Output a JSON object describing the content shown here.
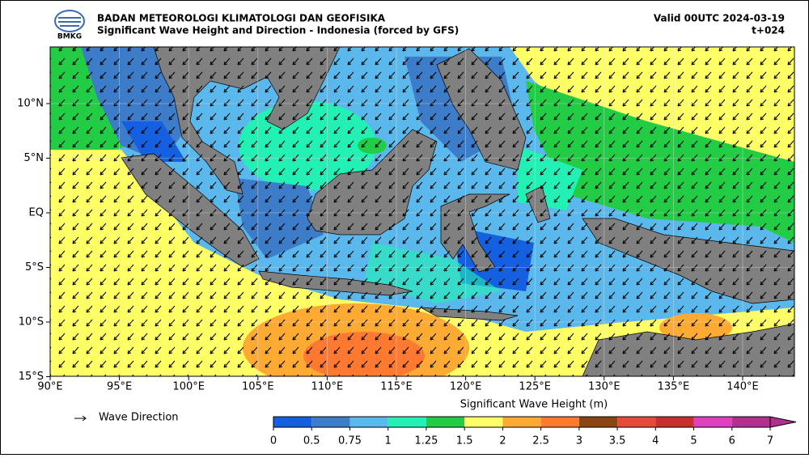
{
  "header": {
    "logo_text": "BMKG",
    "title": "BADAN METEOROLOGI KLIMATOLOGI DAN GEOFISIKA",
    "subtitle": "Significant Wave Height and Direction - Indonesia (forced by GFS)",
    "valid": "Valid 00UTC 2024-03-19",
    "lead_time": "t+024"
  },
  "map": {
    "lon_ticks": [
      {
        "value": 90,
        "label": "90°E"
      },
      {
        "value": 95,
        "label": "95°E"
      },
      {
        "value": 100,
        "label": "100°E"
      },
      {
        "value": 105,
        "label": "105°E"
      },
      {
        "value": 110,
        "label": "110°E"
      },
      {
        "value": 115,
        "label": "115°E"
      },
      {
        "value": 120,
        "label": "120°E"
      },
      {
        "value": 125,
        "label": "125°E"
      },
      {
        "value": 130,
        "label": "130°E"
      },
      {
        "value": 135,
        "label": "135°E"
      },
      {
        "value": 140,
        "label": "140°E"
      }
    ],
    "lat_ticks": [
      {
        "value": 10,
        "label": "10°N"
      },
      {
        "value": 5,
        "label": "5°N"
      },
      {
        "value": 0,
        "label": "EQ"
      },
      {
        "value": -5,
        "label": "5°S"
      },
      {
        "value": -10,
        "label": "10°S"
      },
      {
        "value": -15,
        "label": "15°S"
      }
    ]
  },
  "legend": {
    "arrow_label": "Wave Direction"
  },
  "colorbar": {
    "title": "Significant Wave Height (m)",
    "ticks": [
      0,
      0.5,
      0.75,
      1,
      1.25,
      1.5,
      2,
      2.5,
      3,
      3.5,
      4,
      5,
      6,
      7
    ],
    "colors": [
      "#1560e0",
      "#3d7cc8",
      "#5ab8ec",
      "#22f0b4",
      "#22cc44",
      "#ffff66",
      "#ffaa33",
      "#ff7a30",
      "#8b4513",
      "#e84a3a",
      "#c83030",
      "#e040c0",
      "#b03090"
    ]
  }
}
